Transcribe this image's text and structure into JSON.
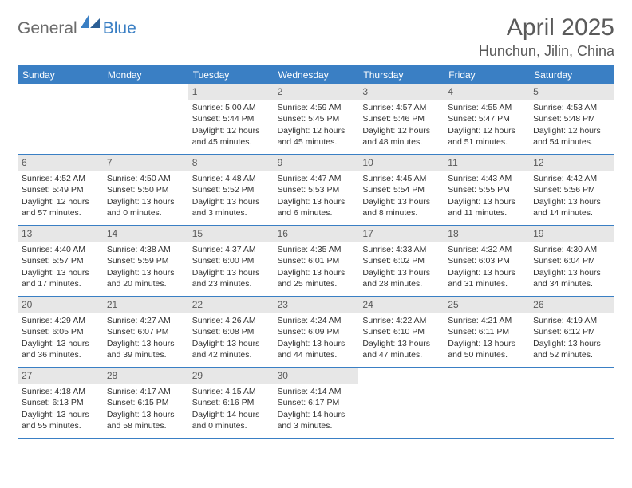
{
  "logo": {
    "general": "General",
    "blue": "Blue"
  },
  "title": "April 2025",
  "location": "Hunchun, Jilin, China",
  "colors": {
    "header_bg": "#3a7fc4",
    "daynum_bg": "#e7e7e7",
    "text_gray": "#5a5a5a",
    "body_text": "#333333",
    "divider": "#3a7fc4"
  },
  "days_of_week": [
    "Sunday",
    "Monday",
    "Tuesday",
    "Wednesday",
    "Thursday",
    "Friday",
    "Saturday"
  ],
  "weeks": [
    [
      {
        "n": "",
        "sunrise": "",
        "sunset": "",
        "daylight": ""
      },
      {
        "n": "",
        "sunrise": "",
        "sunset": "",
        "daylight": ""
      },
      {
        "n": "1",
        "sunrise": "Sunrise: 5:00 AM",
        "sunset": "Sunset: 5:44 PM",
        "daylight": "Daylight: 12 hours and 45 minutes."
      },
      {
        "n": "2",
        "sunrise": "Sunrise: 4:59 AM",
        "sunset": "Sunset: 5:45 PM",
        "daylight": "Daylight: 12 hours and 45 minutes."
      },
      {
        "n": "3",
        "sunrise": "Sunrise: 4:57 AM",
        "sunset": "Sunset: 5:46 PM",
        "daylight": "Daylight: 12 hours and 48 minutes."
      },
      {
        "n": "4",
        "sunrise": "Sunrise: 4:55 AM",
        "sunset": "Sunset: 5:47 PM",
        "daylight": "Daylight: 12 hours and 51 minutes."
      },
      {
        "n": "5",
        "sunrise": "Sunrise: 4:53 AM",
        "sunset": "Sunset: 5:48 PM",
        "daylight": "Daylight: 12 hours and 54 minutes."
      }
    ],
    [
      {
        "n": "6",
        "sunrise": "Sunrise: 4:52 AM",
        "sunset": "Sunset: 5:49 PM",
        "daylight": "Daylight: 12 hours and 57 minutes."
      },
      {
        "n": "7",
        "sunrise": "Sunrise: 4:50 AM",
        "sunset": "Sunset: 5:50 PM",
        "daylight": "Daylight: 13 hours and 0 minutes."
      },
      {
        "n": "8",
        "sunrise": "Sunrise: 4:48 AM",
        "sunset": "Sunset: 5:52 PM",
        "daylight": "Daylight: 13 hours and 3 minutes."
      },
      {
        "n": "9",
        "sunrise": "Sunrise: 4:47 AM",
        "sunset": "Sunset: 5:53 PM",
        "daylight": "Daylight: 13 hours and 6 minutes."
      },
      {
        "n": "10",
        "sunrise": "Sunrise: 4:45 AM",
        "sunset": "Sunset: 5:54 PM",
        "daylight": "Daylight: 13 hours and 8 minutes."
      },
      {
        "n": "11",
        "sunrise": "Sunrise: 4:43 AM",
        "sunset": "Sunset: 5:55 PM",
        "daylight": "Daylight: 13 hours and 11 minutes."
      },
      {
        "n": "12",
        "sunrise": "Sunrise: 4:42 AM",
        "sunset": "Sunset: 5:56 PM",
        "daylight": "Daylight: 13 hours and 14 minutes."
      }
    ],
    [
      {
        "n": "13",
        "sunrise": "Sunrise: 4:40 AM",
        "sunset": "Sunset: 5:57 PM",
        "daylight": "Daylight: 13 hours and 17 minutes."
      },
      {
        "n": "14",
        "sunrise": "Sunrise: 4:38 AM",
        "sunset": "Sunset: 5:59 PM",
        "daylight": "Daylight: 13 hours and 20 minutes."
      },
      {
        "n": "15",
        "sunrise": "Sunrise: 4:37 AM",
        "sunset": "Sunset: 6:00 PM",
        "daylight": "Daylight: 13 hours and 23 minutes."
      },
      {
        "n": "16",
        "sunrise": "Sunrise: 4:35 AM",
        "sunset": "Sunset: 6:01 PM",
        "daylight": "Daylight: 13 hours and 25 minutes."
      },
      {
        "n": "17",
        "sunrise": "Sunrise: 4:33 AM",
        "sunset": "Sunset: 6:02 PM",
        "daylight": "Daylight: 13 hours and 28 minutes."
      },
      {
        "n": "18",
        "sunrise": "Sunrise: 4:32 AM",
        "sunset": "Sunset: 6:03 PM",
        "daylight": "Daylight: 13 hours and 31 minutes."
      },
      {
        "n": "19",
        "sunrise": "Sunrise: 4:30 AM",
        "sunset": "Sunset: 6:04 PM",
        "daylight": "Daylight: 13 hours and 34 minutes."
      }
    ],
    [
      {
        "n": "20",
        "sunrise": "Sunrise: 4:29 AM",
        "sunset": "Sunset: 6:05 PM",
        "daylight": "Daylight: 13 hours and 36 minutes."
      },
      {
        "n": "21",
        "sunrise": "Sunrise: 4:27 AM",
        "sunset": "Sunset: 6:07 PM",
        "daylight": "Daylight: 13 hours and 39 minutes."
      },
      {
        "n": "22",
        "sunrise": "Sunrise: 4:26 AM",
        "sunset": "Sunset: 6:08 PM",
        "daylight": "Daylight: 13 hours and 42 minutes."
      },
      {
        "n": "23",
        "sunrise": "Sunrise: 4:24 AM",
        "sunset": "Sunset: 6:09 PM",
        "daylight": "Daylight: 13 hours and 44 minutes."
      },
      {
        "n": "24",
        "sunrise": "Sunrise: 4:22 AM",
        "sunset": "Sunset: 6:10 PM",
        "daylight": "Daylight: 13 hours and 47 minutes."
      },
      {
        "n": "25",
        "sunrise": "Sunrise: 4:21 AM",
        "sunset": "Sunset: 6:11 PM",
        "daylight": "Daylight: 13 hours and 50 minutes."
      },
      {
        "n": "26",
        "sunrise": "Sunrise: 4:19 AM",
        "sunset": "Sunset: 6:12 PM",
        "daylight": "Daylight: 13 hours and 52 minutes."
      }
    ],
    [
      {
        "n": "27",
        "sunrise": "Sunrise: 4:18 AM",
        "sunset": "Sunset: 6:13 PM",
        "daylight": "Daylight: 13 hours and 55 minutes."
      },
      {
        "n": "28",
        "sunrise": "Sunrise: 4:17 AM",
        "sunset": "Sunset: 6:15 PM",
        "daylight": "Daylight: 13 hours and 58 minutes."
      },
      {
        "n": "29",
        "sunrise": "Sunrise: 4:15 AM",
        "sunset": "Sunset: 6:16 PM",
        "daylight": "Daylight: 14 hours and 0 minutes."
      },
      {
        "n": "30",
        "sunrise": "Sunrise: 4:14 AM",
        "sunset": "Sunset: 6:17 PM",
        "daylight": "Daylight: 14 hours and 3 minutes."
      },
      {
        "n": "",
        "sunrise": "",
        "sunset": "",
        "daylight": ""
      },
      {
        "n": "",
        "sunrise": "",
        "sunset": "",
        "daylight": ""
      },
      {
        "n": "",
        "sunrise": "",
        "sunset": "",
        "daylight": ""
      }
    ]
  ]
}
